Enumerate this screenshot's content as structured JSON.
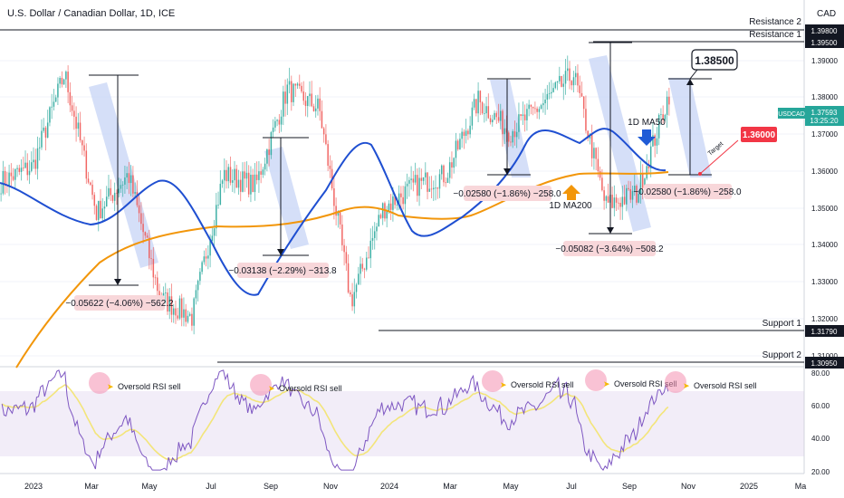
{
  "header": {
    "title": "U.S. Dollar / Canadian Dollar, 1D, ICE",
    "currency": "CAD"
  },
  "colors": {
    "ma50": "#1f4fd1",
    "ma200": "#f2960a",
    "rsi": "#7e57c2",
    "rsi_ma": "#f3e57a",
    "candle_up": "#26a69a",
    "candle_down": "#ef5350",
    "price_badge": "#26a69a",
    "target_badge": "#f23645",
    "box": "#c3d2f5",
    "label_bg": "#f8d7da"
  },
  "chart_data": [
    {
      "type": "candlestick",
      "symbol": "USDCAD",
      "interval": "1D",
      "xlabel": "",
      "ylabel": "",
      "x_ticks": [
        "2023",
        "Mar",
        "May",
        "Jul",
        "Sep",
        "Nov",
        "2024",
        "Mar",
        "May",
        "Jul",
        "Sep",
        "Nov",
        "2025",
        "Ma"
      ],
      "ylim": [
        1.305,
        1.4
      ],
      "y_ticks": [
        "1.39000",
        "1.38000",
        "1.37000",
        "1.36000",
        "1.35000",
        "1.34000",
        "1.33000",
        "1.32000",
        "1.31000"
      ],
      "approx_close_path": [
        {
          "x": "2023-01",
          "y": 1.353
        },
        {
          "x": "2023-02",
          "y": 1.357
        },
        {
          "x": "2023-03",
          "y": 1.381
        },
        {
          "x": "2023-04",
          "y": 1.345
        },
        {
          "x": "2023-05",
          "y": 1.355
        },
        {
          "x": "2023-06",
          "y": 1.323
        },
        {
          "x": "2023-07",
          "y": 1.318
        },
        {
          "x": "2023-08",
          "y": 1.355
        },
        {
          "x": "2023-09",
          "y": 1.352
        },
        {
          "x": "2023-10",
          "y": 1.377
        },
        {
          "x": "2023-11",
          "y": 1.372
        },
        {
          "x": "2023-12",
          "y": 1.322
        },
        {
          "x": "2024-01",
          "y": 1.346
        },
        {
          "x": "2024-02",
          "y": 1.352
        },
        {
          "x": "2024-03",
          "y": 1.355
        },
        {
          "x": "2024-04",
          "y": 1.374
        },
        {
          "x": "2024-05",
          "y": 1.366
        },
        {
          "x": "2024-06",
          "y": 1.373
        },
        {
          "x": "2024-07",
          "y": 1.381
        },
        {
          "x": "2024-08",
          "y": 1.347
        },
        {
          "x": "2024-09",
          "y": 1.35
        },
        {
          "x": "2024-10",
          "y": 1.3759
        }
      ],
      "last_price": {
        "symbol": "USDCAD",
        "value": "1.37593",
        "countdown": "13:25:20"
      },
      "indicators": [
        {
          "name": "1D MA50"
        },
        {
          "name": "1D MA200"
        }
      ],
      "levels": [
        {
          "name": "Resistance 2",
          "value": "1.39800"
        },
        {
          "name": "Resistance 1",
          "value": "1.39500"
        },
        {
          "name": "Support 1",
          "value": "1.31790"
        },
        {
          "name": "Support 2",
          "value": "1.30950"
        }
      ],
      "measurements": [
        {
          "text": "−0.05622 (−4.06%) −562.2"
        },
        {
          "text": "−0.03138 (−2.29%) −313.8"
        },
        {
          "text": "−0.02580 (−1.86%) −258.0"
        },
        {
          "text": "−0.05082 (−3.64%) −508.2"
        },
        {
          "text": "−0.02580 (−1.86%) −258.0"
        }
      ],
      "annotations": {
        "callout": "1.38500",
        "target_badge": "1.36000",
        "target_label": "Target"
      }
    },
    {
      "type": "line",
      "indicator": "RSI",
      "ylim": [
        20,
        80
      ],
      "y_ticks": [
        "80.00",
        "60.00",
        "40.00",
        "20.00"
      ],
      "band": [
        30,
        70
      ],
      "signals": [
        {
          "label": "Oversold RSI sell"
        },
        {
          "label": "Oversold RSI sell"
        },
        {
          "label": "Oversold RSI sell"
        },
        {
          "label": "Oversold RSI sell"
        },
        {
          "label": "Oversold RSI sell"
        }
      ]
    }
  ]
}
